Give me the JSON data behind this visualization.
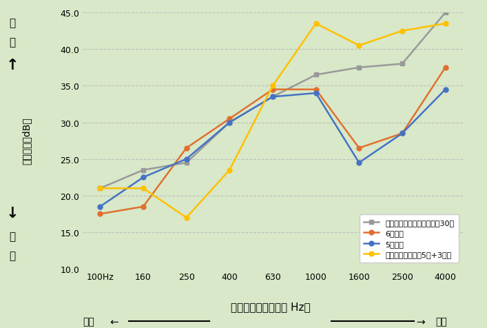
{
  "x_labels": [
    "100Hz",
    "160",
    "250",
    "400",
    "630",
    "1000",
    "1600",
    "2500",
    "4000"
  ],
  "x_positions": [
    0,
    1,
    2,
    3,
    4,
    5,
    6,
    7,
    8
  ],
  "series": {
    "bouon": {
      "label": "防音ガラス（ラミシャット30）",
      "color": "#999999",
      "marker": "s",
      "values": [
        21.0,
        23.5,
        24.5,
        30.0,
        33.5,
        36.5,
        37.5,
        38.0,
        45.0
      ]
    },
    "6mm": {
      "label": "6㎜単板",
      "color": "#e07030",
      "marker": "o",
      "values": [
        17.5,
        18.5,
        26.5,
        30.5,
        34.5,
        34.5,
        26.5,
        28.5,
        37.5
      ]
    },
    "5mm": {
      "label": "5㎜単板",
      "color": "#4472c4",
      "marker": "o",
      "values": [
        18.5,
        22.5,
        25.0,
        30.0,
        33.5,
        34.0,
        24.5,
        28.5,
        34.5
      ]
    },
    "ikouatsu": {
      "label": "異厘透明ガラス（5㎜+3㎜）",
      "color": "#ffc000",
      "marker": "o",
      "values": [
        21.0,
        21.0,
        17.0,
        23.5,
        35.0,
        43.5,
        40.5,
        42.5,
        43.5
      ]
    }
  },
  "ylim": [
    10.0,
    45.0
  ],
  "yticks": [
    10.0,
    15.0,
    20.0,
    25.0,
    30.0,
    35.0,
    40.0,
    45.0
  ],
  "bg_color": "#d8e8c8",
  "grid_color": "#bbbbbb",
  "ylabel_text": "防音性能「dB」",
  "xlabel_text": "騒音の高さ（周波数 Hz）",
  "high_label": "高\nい",
  "low_label": "低\nい",
  "bottom_left": "低音",
  "bottom_right": "高音"
}
